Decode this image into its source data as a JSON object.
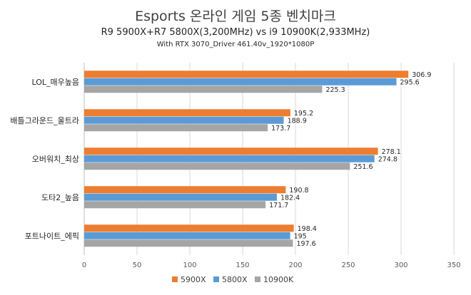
{
  "chart_data": {
    "type": "bar",
    "orientation": "horizontal",
    "title": "Esports 온라인 게임 5종 벤치마크",
    "subtitle": "R9 5900X+R7 5800X(3,200MHz) vs i9 10900K(2,933MHz)",
    "subtitle2": "With RTX 3070_Driver 461.40v_1920*1080P",
    "categories": [
      "LOL_매우높음",
      "배틀그라운드_울트라",
      "오버워치_최상",
      "도타2_높음",
      "포트나이트_에픽"
    ],
    "series": [
      {
        "name": "5900X",
        "color": "#ED7D31",
        "values": [
          306.9,
          195.2,
          278.1,
          190.8,
          198.4
        ]
      },
      {
        "name": "5800X",
        "color": "#5B9BD5",
        "values": [
          295.6,
          188.9,
          274.8,
          182.4,
          195
        ]
      },
      {
        "name": "10900K",
        "color": "#A5A5A5",
        "values": [
          225.3,
          173.7,
          251.6,
          171.7,
          197.6
        ]
      }
    ],
    "xlim": [
      0,
      350
    ],
    "xticks": [
      0,
      50,
      100,
      150,
      200,
      250,
      300,
      350
    ],
    "grid": true,
    "legend_position": "bottom"
  }
}
